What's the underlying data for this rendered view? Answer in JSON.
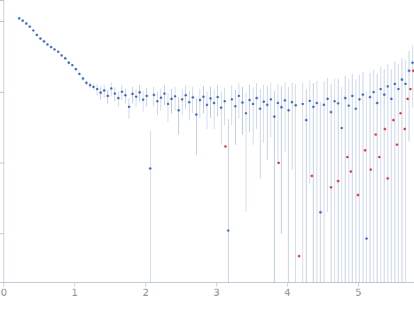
{
  "chart_data": {
    "type": "scatter",
    "log": "y",
    "tick_labels": "x",
    "xlim": [
      0,
      5.79
    ],
    "xticks": [
      0,
      1,
      2,
      3,
      4,
      5
    ],
    "ylim": [
      0.000204,
      2.0
    ],
    "yticks": [
      0.001,
      0.01,
      0.1,
      1
    ],
    "series": [
      {
        "color": "#3b66c4",
        "marker": "circle",
        "x": [
          0.22,
          0.27,
          0.32,
          0.37,
          0.42,
          0.47,
          0.52,
          0.57,
          0.62,
          0.67,
          0.72,
          0.77,
          0.82,
          0.87,
          0.92,
          0.97,
          1.02,
          1.07,
          1.12,
          1.17,
          1.22,
          1.27,
          1.32,
          1.37,
          1.42,
          1.47,
          1.52,
          1.57,
          1.62,
          1.67,
          1.72,
          1.77,
          1.82,
          1.87,
          1.92,
          1.97,
          2.02,
          2.07,
          2.12,
          2.17,
          2.22,
          2.27,
          2.32,
          2.37,
          2.42,
          2.47,
          2.52,
          2.57,
          2.62,
          2.67,
          2.72,
          2.77,
          2.82,
          2.87,
          2.92,
          2.97,
          3.02,
          3.07,
          3.12,
          3.17,
          3.22,
          3.27,
          3.32,
          3.37,
          3.42,
          3.47,
          3.52,
          3.57,
          3.62,
          3.67,
          3.72,
          3.77,
          3.82,
          3.87,
          3.92,
          3.97,
          4.02,
          4.07,
          4.12,
          4.22,
          4.27,
          4.32,
          4.37,
          4.42,
          4.47,
          4.52,
          4.57,
          4.62,
          4.67,
          4.72,
          4.77,
          4.82,
          4.87,
          4.92,
          4.97,
          5.02,
          5.07,
          5.12,
          5.17,
          5.22,
          5.27,
          5.32,
          5.37,
          5.42,
          5.47,
          5.52,
          5.57,
          5.62,
          5.67,
          5.72,
          5.77
        ],
        "values": [
          1.1,
          1.02,
          0.93,
          0.84,
          0.74,
          0.64,
          0.57,
          0.52,
          0.47,
          0.43,
          0.4,
          0.37,
          0.33,
          0.3,
          0.26,
          0.24,
          0.21,
          0.18,
          0.155,
          0.135,
          0.125,
          0.118,
          0.11,
          0.098,
          0.105,
          0.088,
          0.112,
          0.095,
          0.082,
          0.101,
          0.09,
          0.062,
          0.094,
          0.086,
          0.099,
          0.078,
          0.088,
          0.0083,
          0.091,
          0.074,
          0.083,
          0.095,
          0.068,
          0.08,
          0.087,
          0.055,
          0.079,
          0.09,
          0.072,
          0.084,
          0.048,
          0.077,
          0.086,
          0.066,
          0.081,
          0.07,
          0.085,
          0.06,
          0.074,
          0.0011,
          0.079,
          0.063,
          0.088,
          0.071,
          0.05,
          0.077,
          0.068,
          0.082,
          0.058,
          0.073,
          0.066,
          0.079,
          0.045,
          0.07,
          0.061,
          0.076,
          0.055,
          0.072,
          0.065,
          0.068,
          0.04,
          0.075,
          0.062,
          0.07,
          0.002,
          0.066,
          0.08,
          0.052,
          0.074,
          0.069,
          0.031,
          0.082,
          0.064,
          0.088,
          0.058,
          0.079,
          0.092,
          0.00085,
          0.085,
          0.1,
          0.07,
          0.11,
          0.092,
          0.12,
          0.08,
          0.13,
          0.11,
          0.15,
          0.13,
          0.2,
          0.26
        ],
        "errors": [
          0.03,
          0.03,
          0.028,
          0.025,
          0.022,
          0.02,
          0.018,
          0.017,
          0.016,
          0.015,
          0.014,
          0.013,
          0.012,
          0.012,
          0.011,
          0.011,
          0.01,
          0.01,
          0.01,
          0.01,
          0.01,
          0.01,
          0.02,
          0.02,
          0.022,
          0.02,
          0.025,
          0.022,
          0.02,
          0.024,
          0.022,
          0.02,
          0.025,
          0.024,
          0.026,
          0.025,
          0.026,
          0.02,
          0.028,
          0.027,
          0.028,
          0.03,
          0.03,
          0.03,
          0.032,
          0.03,
          0.032,
          0.033,
          0.032,
          0.034,
          0.035,
          0.034,
          0.036,
          0.036,
          0.038,
          0.04,
          0.04,
          0.042,
          0.04,
          0.04,
          0.045,
          0.045,
          0.046,
          0.046,
          0.048,
          0.05,
          0.05,
          0.052,
          0.052,
          0.054,
          0.055,
          0.056,
          0.058,
          0.06,
          0.06,
          0.062,
          0.062,
          0.064,
          0.065,
          0.068,
          0.07,
          0.07,
          0.072,
          0.074,
          0.07,
          0.076,
          0.078,
          0.08,
          0.082,
          0.084,
          0.086,
          0.088,
          0.09,
          0.092,
          0.094,
          0.096,
          0.1,
          0.1,
          0.1,
          0.11,
          0.11,
          0.12,
          0.12,
          0.13,
          0.13,
          0.14,
          0.14,
          0.15,
          0.16,
          0.18,
          0.2
        ]
      },
      {
        "color": "#e0302a",
        "marker": "circle",
        "x": [
          3.13,
          3.88,
          4.17,
          4.35,
          4.62,
          4.72,
          4.85,
          4.9,
          5.0,
          5.1,
          5.18,
          5.25,
          5.3,
          5.38,
          5.42,
          5.5,
          5.55,
          5.6,
          5.66,
          5.7,
          5.74,
          5.78
        ],
        "values": [
          0.017,
          0.01,
          0.00048,
          0.0065,
          0.0045,
          0.0055,
          0.012,
          0.0075,
          0.0035,
          0.015,
          0.008,
          0.025,
          0.012,
          0.03,
          0.006,
          0.04,
          0.018,
          0.05,
          0.03,
          0.08,
          0.11,
          0.2
        ]
      }
    ]
  }
}
